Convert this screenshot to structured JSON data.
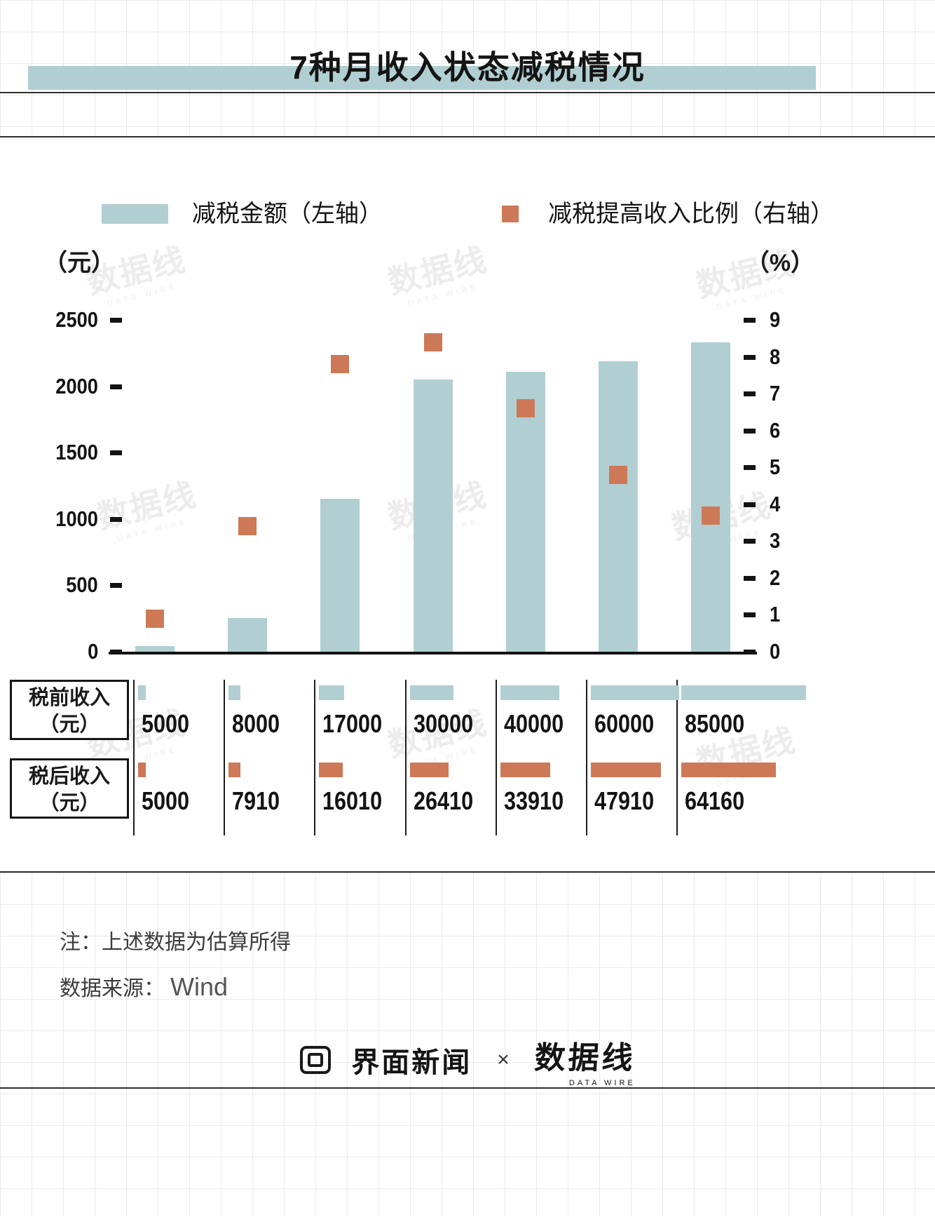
{
  "colors": {
    "teal": "#b1cfd2",
    "orange": "#cd7958",
    "text": "#1a1a1a"
  },
  "header": {
    "title": "7种月收入状态减税情况"
  },
  "legend": {
    "items": [
      {
        "label": "减税金额（左轴）",
        "swatch": "bar",
        "color": "#b1cfd2"
      },
      {
        "label": "减税提高收入比例（右轴）",
        "swatch": "square",
        "color": "#cd7958"
      }
    ]
  },
  "chart_data": {
    "type": "bar",
    "title": "7种月收入状态减税情况",
    "categories": [
      "5000",
      "8000",
      "17000",
      "30000",
      "40000",
      "60000",
      "85000"
    ],
    "series": [
      {
        "name": "减税金额（左轴）",
        "type": "bar",
        "axis": "left",
        "unit": "元",
        "values": [
          45,
          255,
          1150,
          2050,
          2110,
          2190,
          2330
        ]
      },
      {
        "name": "减税提高收入比例（右轴）",
        "type": "scatter",
        "axis": "right",
        "unit": "%",
        "values": [
          0.9,
          3.4,
          7.8,
          8.4,
          6.6,
          4.8,
          3.7
        ]
      }
    ],
    "left_axis": {
      "unit": "（元）",
      "ticks": [
        "2500",
        "2000",
        "1500",
        "1000",
        "500",
        "0"
      ],
      "max": 2500,
      "min": 0
    },
    "right_axis": {
      "unit": "（%）",
      "ticks": [
        "9",
        "8",
        "7",
        "6",
        "5",
        "4",
        "3",
        "2",
        "1",
        "0"
      ],
      "max": 9,
      "min": 0
    },
    "legend_position": "top",
    "grid": false
  },
  "table": {
    "max_value": 85000,
    "rows": [
      {
        "label_line1": "税前收入",
        "label_line2": "（元）",
        "color": "#b1cfd2",
        "values": [
          5000,
          8000,
          17000,
          30000,
          40000,
          60000,
          85000
        ]
      },
      {
        "label_line1": "税后收入",
        "label_line2": "（元）",
        "color": "#cd7958",
        "values": [
          5000,
          7910,
          16010,
          26410,
          33910,
          47910,
          64160
        ]
      }
    ]
  },
  "footer": {
    "note": "注：上述数据为估算所得",
    "source_label": "数据来源：",
    "source_value": "Wind",
    "logos": {
      "jiemian": "界面新闻",
      "separator": "×",
      "datawire": "数据线",
      "datawire_sub": "DATA WIRE"
    }
  },
  "watermark": {
    "text": "数据线",
    "sub": "DATA WIRE"
  }
}
